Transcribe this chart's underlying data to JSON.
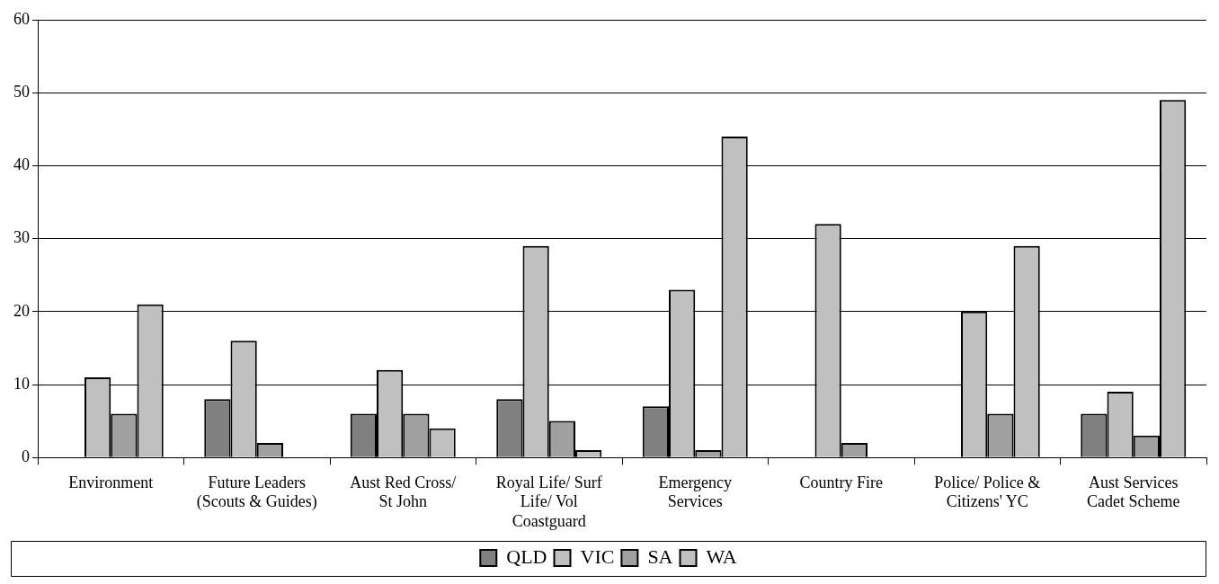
{
  "chart_data": {
    "type": "bar",
    "categories": [
      "Environment",
      "Future Leaders (Scouts & Guides)",
      "Aust Red Cross/ St John",
      "Royal Life/ Surf Life/ Vol Coastguard",
      "Emergency Services",
      "Country Fire",
      "Police/ Police & Citizens' YC",
      "Aust Services Cadet Scheme"
    ],
    "series": [
      {
        "name": "QLD",
        "color": "#808080",
        "values": [
          0,
          8,
          6,
          8,
          7,
          0,
          0,
          6
        ]
      },
      {
        "name": "VIC",
        "color": "#c0c0c0",
        "values": [
          11,
          16,
          12,
          29,
          23,
          32,
          20,
          9
        ]
      },
      {
        "name": "SA",
        "color": "#a0a0a0",
        "values": [
          6,
          2,
          6,
          5,
          1,
          2,
          6,
          3
        ]
      },
      {
        "name": "WA",
        "color": "#c0c0c0",
        "values": [
          21,
          0,
          4,
          1,
          44,
          0,
          29,
          49
        ]
      }
    ],
    "ylim": [
      0,
      60
    ],
    "yticks": [
      0,
      10,
      20,
      30,
      40,
      50,
      60
    ],
    "grid": "y",
    "legend": "bottom"
  }
}
